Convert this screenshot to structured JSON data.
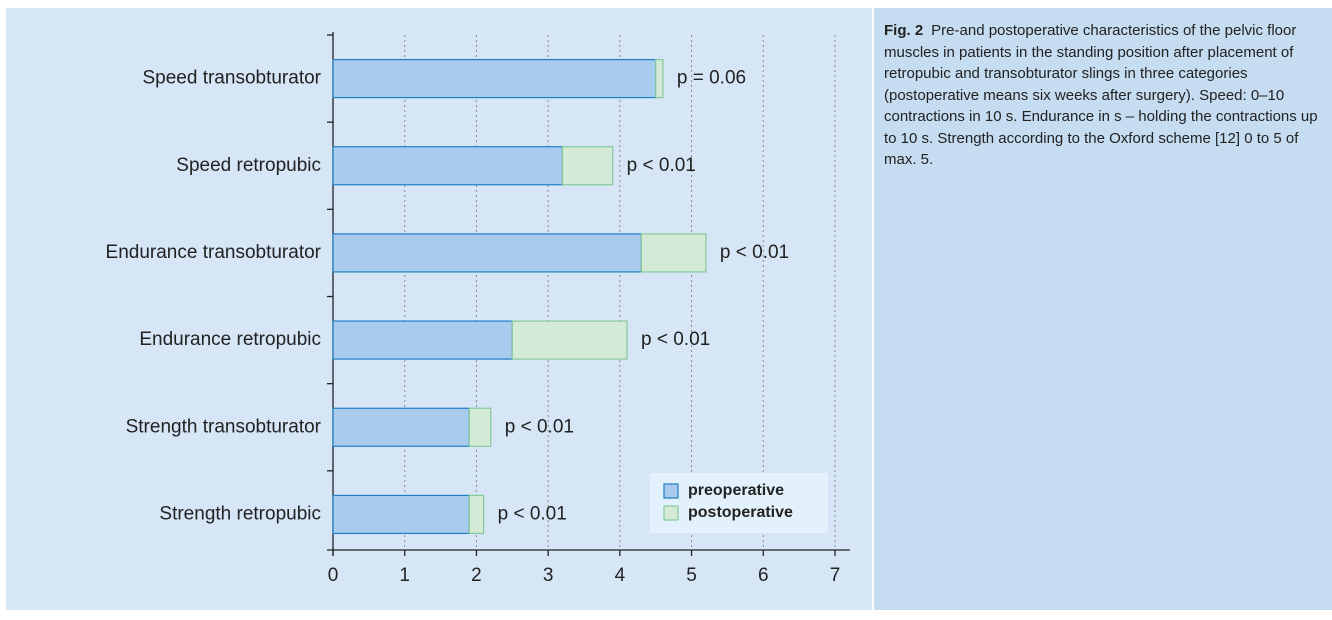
{
  "chart_data": {
    "type": "stacked-barh",
    "categories": [
      "Speed transobturator",
      "Speed retropubic",
      "Endurance transobturator",
      "Endurance retropubic",
      "Strength transobturator",
      "Strength retropubic"
    ],
    "series": [
      {
        "name": "preoperative",
        "color": "#a9cbee",
        "stroke": "#1f7fc4",
        "values": [
          4.5,
          3.2,
          4.3,
          2.5,
          1.9,
          1.9
        ]
      },
      {
        "name": "postoperative",
        "color": "#d3ebd6",
        "stroke": "#86c89a",
        "values": [
          0.1,
          0.7,
          0.9,
          1.6,
          0.3,
          0.2
        ]
      }
    ],
    "annotations": [
      "p = 0.06",
      "p < 0.01",
      "p < 0.01",
      "p < 0.01",
      "p < 0.01",
      "p < 0.01"
    ],
    "xlim": [
      0,
      7
    ],
    "xticks": [
      0,
      1,
      2,
      3,
      4,
      5,
      6,
      7
    ],
    "grid": true,
    "legend": "lower right",
    "caption_label": "Fig. 2",
    "caption": "Pre-and postoperative characteristics of the pelvic floor muscles in patients in the standing position after placement of retropubic and transobturator slings in three categories (postoperative means six weeks after surgery). Speed: 0–10 contractions in 10 s. Endurance in s – holding the contractions up to 10 s. Strength according to the Oxford scheme [12] 0 to 5 of max. 5."
  }
}
